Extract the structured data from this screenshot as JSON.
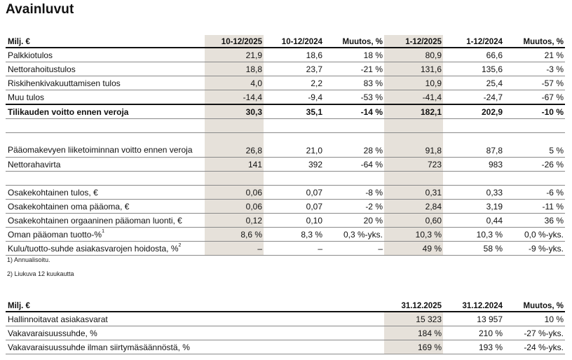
{
  "title": "Avainluvut",
  "table1": {
    "headers": [
      "Milj. €",
      "10-12/2025",
      "10-12/2024",
      "Muutos, %",
      "1-12/2025",
      "1-12/2024",
      "Muutos, %"
    ],
    "rows": [
      {
        "label": "Palkkiotulos",
        "values": [
          "21,9",
          "18,6",
          "18 %",
          "80,9",
          "66,6",
          "21 %"
        ]
      },
      {
        "label": "Nettorahoitustulos",
        "values": [
          "18,8",
          "23,7",
          "-21 %",
          "131,6",
          "135,6",
          "-3 %"
        ]
      },
      {
        "label": "Riskihenkivakuuttamisen tulos",
        "values": [
          "4,0",
          "2,2",
          "83 %",
          "10,9",
          "25,4",
          "-57 %"
        ]
      },
      {
        "label": "Muu tulos",
        "values": [
          "-14,4",
          "-9,4",
          "-53 %",
          "-41,4",
          "-24,7",
          "-67 %"
        ]
      },
      {
        "label": "Tilikauden voitto ennen veroja",
        "values": [
          "30,3",
          "35,1",
          "-14 %",
          "182,1",
          "202,9",
          "-10 %"
        ],
        "style": "total"
      },
      {
        "style": "blank"
      },
      {
        "label": "Pääomakevyen liiketoiminnan voitto ennen veroja",
        "values": [
          "26,8",
          "21,0",
          "28 %",
          "91,8",
          "87,8",
          "5 %"
        ],
        "style": "two"
      },
      {
        "label": "Nettorahavirta",
        "values": [
          "141",
          "392",
          "-64 %",
          "723",
          "983",
          "-26 %"
        ]
      },
      {
        "style": "blank"
      },
      {
        "label": "Osakekohtainen tulos, €",
        "values": [
          "0,06",
          "0,07",
          "-8 %",
          "0,31",
          "0,33",
          "-6 %"
        ]
      },
      {
        "label": "Osakekohtainen oma pääoma, €",
        "values": [
          "0,06",
          "0,07",
          "-2 %",
          "2,84",
          "3,19",
          "-11 %"
        ]
      },
      {
        "label": "Osakekohtainen orgaaninen pääoman luonti, €",
        "values": [
          "0,12",
          "0,10",
          "20 %",
          "0,60",
          "0,44",
          "36 %"
        ]
      },
      {
        "label": "Oman pääoman tuotto-%",
        "sup": "1",
        "values": [
          "8,6 %",
          "8,3 %",
          "0,3 %-yks.",
          "10,3 %",
          "10,3 %",
          "0,0 %-yks."
        ]
      },
      {
        "label": "Kulu/tuotto-suhde asiakasvarojen hoidosta, %",
        "sup": "2",
        "values": [
          "–",
          "–",
          "–",
          "49 %",
          "58 %",
          "-9 %-yks."
        ]
      }
    ],
    "footnotes": [
      "1) Annualisoitu.",
      "2) Liukuva 12 kuukautta"
    ]
  },
  "table2": {
    "headers": [
      "Milj. €",
      "31.12.2025",
      "31.12.2024",
      "Muutos, %"
    ],
    "rows": [
      {
        "label": "Hallinnoitavat asiakasvarat",
        "values": [
          "15 323",
          "13 957",
          "10 %"
        ]
      },
      {
        "label": "Vakavaraisuussuhde, %",
        "values": [
          "184 %",
          "210 %",
          "-27 %-yks."
        ]
      },
      {
        "label": "Vakavaraisuussuhde ilman siirtymäsäännöstä, %",
        "values": [
          "169 %",
          "193 %",
          "-24 %-yks."
        ]
      }
    ]
  },
  "colors": {
    "highlight_column": "#e6e1da",
    "rule": "#111111"
  }
}
